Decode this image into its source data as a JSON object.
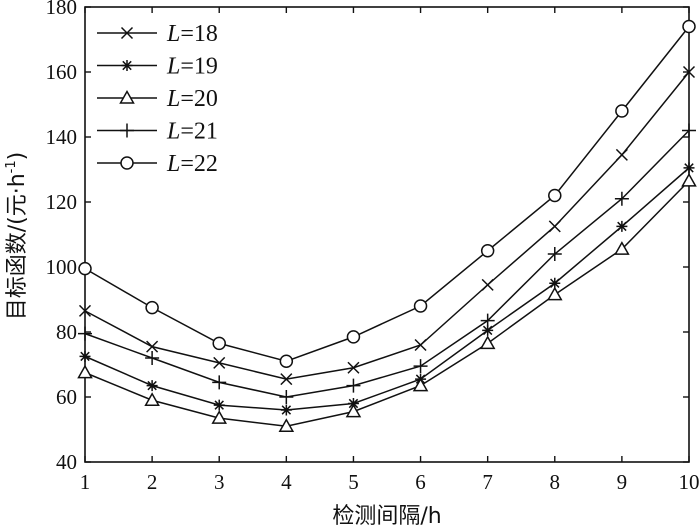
{
  "chart_data": {
    "type": "line",
    "title": "",
    "xlabel": "检测间隔/h",
    "ylabel_main": "目标函数/(元·h",
    "ylabel_sup": "-1",
    "ylabel_close": ")",
    "x": [
      1,
      2,
      3,
      4,
      5,
      6,
      7,
      8,
      9,
      10
    ],
    "xlim": [
      1,
      10
    ],
    "ylim": [
      40,
      180
    ],
    "xticks": [
      1,
      2,
      3,
      4,
      5,
      6,
      7,
      8,
      9,
      10
    ],
    "yticks": [
      40,
      60,
      80,
      100,
      120,
      140,
      160,
      180
    ],
    "grid": false,
    "legend_position": "top-left",
    "series": [
      {
        "name": "L=18",
        "name_var": "L",
        "name_val": "=18",
        "marker": "x",
        "values": [
          86.5,
          75.5,
          70.5,
          65.5,
          69,
          76,
          94.5,
          112.5,
          134.5,
          160
        ]
      },
      {
        "name": "L=19",
        "name_var": "L",
        "name_val": "=19",
        "marker": "star",
        "values": [
          72.5,
          63.5,
          57.5,
          56,
          58,
          65.5,
          80.5,
          95,
          112.5,
          130.5
        ]
      },
      {
        "name": "L=20",
        "name_var": "L",
        "name_val": "=20",
        "marker": "triangle",
        "values": [
          67.5,
          59,
          53.5,
          51,
          55.5,
          63.5,
          76.5,
          91.5,
          105.5,
          126.5
        ]
      },
      {
        "name": "L=21",
        "name_var": "L",
        "name_val": "=21",
        "marker": "plus",
        "values": [
          79.5,
          72,
          64.5,
          60,
          63.5,
          69.5,
          83.5,
          104,
          121,
          142
        ]
      },
      {
        "name": "L=22",
        "name_var": "L",
        "name_val": "=22",
        "marker": "circle",
        "values": [
          99.5,
          87.5,
          76.5,
          71,
          78.5,
          88,
          105,
          122,
          148,
          174
        ]
      }
    ]
  }
}
